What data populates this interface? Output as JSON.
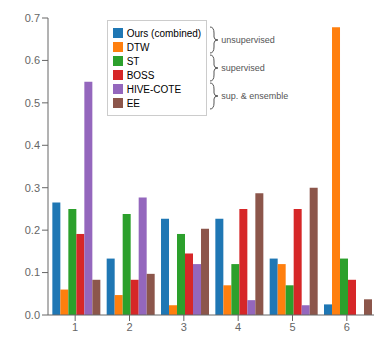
{
  "chart_data": {
    "type": "bar",
    "categories": [
      "1",
      "2",
      "3",
      "4",
      "5",
      "6"
    ],
    "series": [
      {
        "name": "Ours (combined)",
        "color": "#1f77b4",
        "values": [
          0.265,
          0.133,
          0.227,
          0.227,
          0.133,
          0.025
        ]
      },
      {
        "name": "DTW",
        "color": "#ff7f0e",
        "values": [
          0.06,
          0.047,
          0.023,
          0.07,
          0.12,
          0.678
        ]
      },
      {
        "name": "ST",
        "color": "#2ca02c",
        "values": [
          0.25,
          0.238,
          0.191,
          0.12,
          0.07,
          0.133
        ]
      },
      {
        "name": "BOSS",
        "color": "#d62728",
        "values": [
          0.191,
          0.083,
          0.145,
          0.25,
          0.25,
          0.083
        ]
      },
      {
        "name": "HIVE-COTE",
        "color": "#9467bd",
        "values": [
          0.55,
          0.277,
          0.12,
          0.035,
          0.023,
          0.0
        ]
      },
      {
        "name": "EE",
        "color": "#8c564b",
        "values": [
          0.083,
          0.097,
          0.203,
          0.287,
          0.3,
          0.037
        ]
      }
    ],
    "ylim": [
      0.0,
      0.7
    ],
    "yticks": [
      {
        "value": 0.0,
        "label": "0.0"
      },
      0.1,
      0.2,
      0.3,
      0.4,
      0.5,
      0.6,
      0.7
    ],
    "annotations": [
      "unsupervised",
      "supervised",
      "sup. & ensemble"
    ],
    "legend": "upper center",
    "grid": false
  }
}
